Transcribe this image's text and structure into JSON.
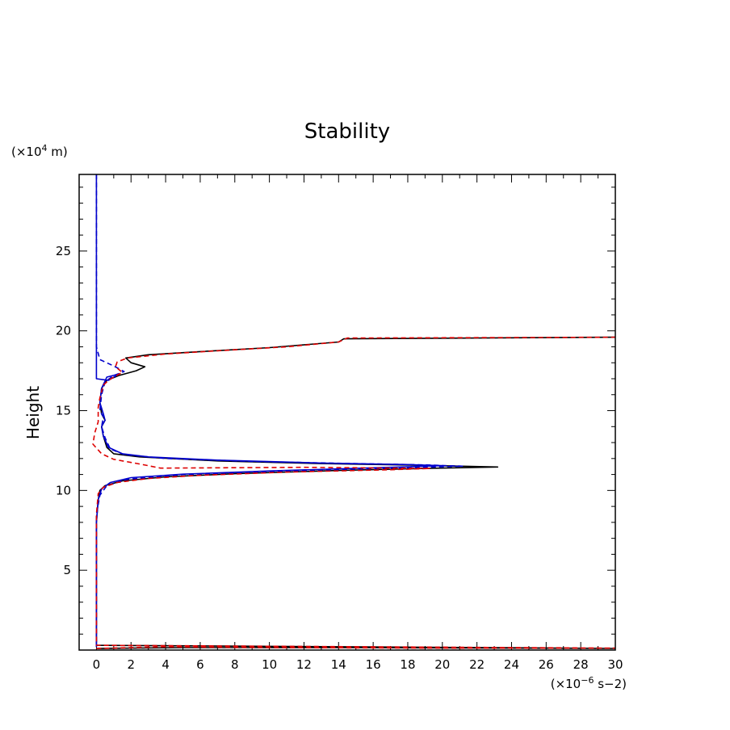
{
  "chart_data": {
    "type": "line",
    "title": "Stability",
    "ylabel": "Height",
    "xlabel": "",
    "x_unit_prefix": "(×10",
    "x_unit_exp": "−6",
    "x_unit_suffix": " s−2)",
    "y_unit_prefix": "(×10",
    "y_unit_exp": "4",
    "y_unit_suffix": " m)",
    "xlim": [
      -1,
      30
    ],
    "ylim": [
      0,
      29.8
    ],
    "x_ticks": [
      0,
      2,
      4,
      6,
      8,
      10,
      12,
      14,
      16,
      18,
      20,
      22,
      24,
      26,
      28,
      30
    ],
    "y_ticks": [
      5,
      10,
      15,
      20,
      25
    ],
    "grid": false,
    "series": [
      {
        "color": "#000000",
        "dash": "solid",
        "points": [
          [
            0,
            0.1
          ],
          [
            5,
            0.15
          ],
          [
            15,
            0.15
          ],
          [
            30,
            0.1
          ],
          [
            0,
            0.3
          ],
          [
            0,
            6
          ],
          [
            0,
            8
          ],
          [
            0.1,
            9.4
          ],
          [
            0.2,
            10.0
          ],
          [
            0.5,
            10.3
          ],
          [
            1.5,
            10.6
          ],
          [
            4,
            10.85
          ],
          [
            8,
            11.05
          ],
          [
            14,
            11.25
          ],
          [
            19,
            11.38
          ],
          [
            23.2,
            11.47
          ],
          [
            19,
            11.57
          ],
          [
            13,
            11.68
          ],
          [
            7,
            11.85
          ],
          [
            2.5,
            12.1
          ],
          [
            1,
            12.3
          ],
          [
            0.6,
            12.7
          ],
          [
            0.4,
            13.4
          ],
          [
            0.3,
            14.0
          ],
          [
            0.5,
            14.4
          ],
          [
            0.3,
            14.8
          ],
          [
            0.2,
            15.5
          ],
          [
            0.3,
            16.4
          ],
          [
            0.6,
            16.9
          ],
          [
            1.3,
            17.2
          ],
          [
            2.3,
            17.5
          ],
          [
            2.8,
            17.75
          ],
          [
            2.0,
            18.0
          ],
          [
            1.7,
            18.3
          ],
          [
            3,
            18.5
          ],
          [
            6,
            18.7
          ],
          [
            10,
            18.95
          ],
          [
            14,
            19.3
          ],
          [
            14.3,
            19.5
          ],
          [
            30,
            19.6
          ]
        ]
      },
      {
        "color": "#0000cc",
        "dash": "solid",
        "points": [
          [
            0,
            29.8
          ],
          [
            0,
            18.9
          ],
          [
            0,
            17.0
          ],
          [
            0.7,
            16.9
          ],
          [
            1.3,
            17.3
          ],
          [
            0.6,
            17.1
          ],
          [
            0.3,
            16.4
          ],
          [
            0.2,
            15.5
          ],
          [
            0.4,
            14.8
          ],
          [
            0.5,
            14.4
          ],
          [
            0.3,
            14.0
          ],
          [
            0.4,
            13.4
          ],
          [
            0.7,
            12.7
          ],
          [
            1.5,
            12.3
          ],
          [
            3,
            12.1
          ],
          [
            7,
            11.9
          ],
          [
            13,
            11.72
          ],
          [
            18,
            11.62
          ],
          [
            20,
            11.55
          ],
          [
            16,
            11.42
          ],
          [
            10,
            11.22
          ],
          [
            5,
            11.02
          ],
          [
            2,
            10.8
          ],
          [
            0.8,
            10.5
          ],
          [
            0.3,
            10.1
          ],
          [
            0.1,
            9.4
          ],
          [
            0,
            8
          ],
          [
            0,
            0.2
          ]
        ]
      },
      {
        "color": "#0000cc",
        "dash": "dashed",
        "points": [
          [
            0,
            29.8
          ],
          [
            0,
            19.0
          ],
          [
            0.2,
            18.2
          ],
          [
            1.0,
            17.8
          ],
          [
            1.6,
            17.45
          ],
          [
            1.0,
            17.2
          ],
          [
            0.5,
            16.8
          ],
          [
            0.3,
            16.0
          ],
          [
            0.2,
            15.0
          ],
          [
            0.4,
            14.6
          ],
          [
            0.3,
            14.0
          ],
          [
            0.5,
            13.3
          ],
          [
            0.8,
            12.6
          ],
          [
            1.6,
            12.25
          ],
          [
            4,
            12.0
          ],
          [
            9,
            11.82
          ],
          [
            14,
            11.7
          ],
          [
            19,
            11.6
          ],
          [
            21.2,
            11.52
          ],
          [
            17,
            11.4
          ],
          [
            11,
            11.22
          ],
          [
            5,
            11.0
          ],
          [
            1.8,
            10.7
          ],
          [
            0.6,
            10.3
          ],
          [
            0.2,
            9.7
          ],
          [
            0,
            8.5
          ],
          [
            0,
            0.2
          ]
        ]
      },
      {
        "color": "#dd0000",
        "dash": "dashed",
        "points": [
          [
            0,
            0.1
          ],
          [
            4,
            0.2
          ],
          [
            10,
            0.15
          ],
          [
            20,
            0.12
          ],
          [
            30,
            0.12
          ],
          [
            0,
            0.3
          ],
          [
            0,
            6
          ],
          [
            0,
            8.5
          ],
          [
            0.1,
            9.8
          ],
          [
            0.4,
            10.2
          ],
          [
            1.2,
            10.5
          ],
          [
            3,
            10.75
          ],
          [
            6,
            10.95
          ],
          [
            11,
            11.15
          ],
          [
            17,
            11.3
          ],
          [
            19.3,
            11.38
          ],
          [
            12,
            11.45
          ],
          [
            3.7,
            11.4
          ],
          [
            3,
            11.55
          ],
          [
            2.2,
            11.72
          ],
          [
            1.0,
            11.95
          ],
          [
            0.3,
            12.3
          ],
          [
            -0.2,
            12.9
          ],
          [
            -0.1,
            13.6
          ],
          [
            0.1,
            14.3
          ],
          [
            0.1,
            15.2
          ],
          [
            0.2,
            15.8
          ],
          [
            0.4,
            16.6
          ],
          [
            0.7,
            16.9
          ],
          [
            1.0,
            17.1
          ],
          [
            1.5,
            17.4
          ],
          [
            1.1,
            17.75
          ],
          [
            1.2,
            18.05
          ],
          [
            1.8,
            18.3
          ],
          [
            4,
            18.55
          ],
          [
            7,
            18.75
          ],
          [
            11,
            19.0
          ],
          [
            14,
            19.3
          ],
          [
            14.5,
            19.55
          ],
          [
            30,
            19.6
          ]
        ]
      }
    ]
  }
}
